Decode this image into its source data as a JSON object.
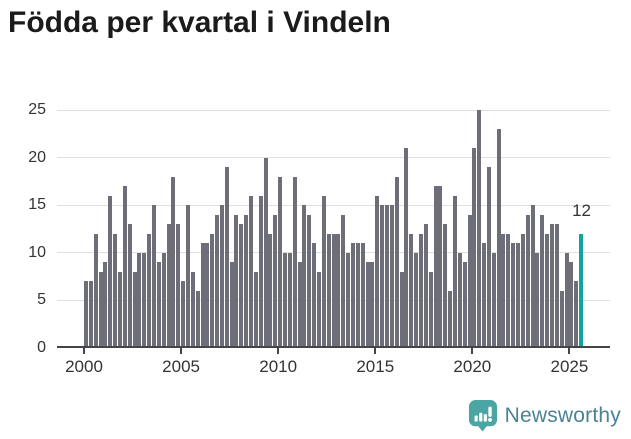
{
  "title": "Födda per kvartal i Vindeln",
  "colors": {
    "bar": "#6e6e78",
    "highlight": "#12a3a0",
    "grid": "#e0e0e0",
    "axis": "#454545",
    "label_text": "#333333",
    "title_text": "#1b1b1b",
    "logo_icon": "#4aa5a3",
    "logo_text": "#4b8294"
  },
  "chart_data": {
    "type": "bar",
    "title": "Födda per kvartal i Vindeln",
    "x_unit": "quarter",
    "x_start": "2000 Q1",
    "x_end": "2025 Q3",
    "ylim": [
      0,
      25
    ],
    "y_ticks": [
      0,
      5,
      10,
      15,
      20,
      25
    ],
    "x_tick_labels": [
      "2000",
      "2005",
      "2010",
      "2015",
      "2020",
      "2025"
    ],
    "grid": "horizontal",
    "legend": "none",
    "series": [
      {
        "name": "Födda per kvartal",
        "values": [
          7,
          7,
          12,
          8,
          9,
          16,
          12,
          8,
          17,
          13,
          8,
          10,
          10,
          12,
          15,
          9,
          10,
          13,
          18,
          13,
          7,
          15,
          8,
          6,
          11,
          11,
          12,
          14,
          15,
          19,
          9,
          14,
          13,
          14,
          16,
          8,
          16,
          20,
          12,
          14,
          18,
          10,
          10,
          18,
          9,
          15,
          14,
          11,
          8,
          16,
          12,
          12,
          12,
          14,
          10,
          11,
          11,
          11,
          9,
          9,
          16,
          15,
          15,
          15,
          18,
          8,
          21,
          12,
          10,
          12,
          13,
          8,
          17,
          17,
          13,
          6,
          16,
          10,
          9,
          14,
          21,
          25,
          11,
          19,
          10,
          23,
          12,
          12,
          11,
          11,
          12,
          14,
          15,
          10,
          14,
          12,
          13,
          13,
          6,
          10,
          9,
          7,
          12
        ]
      }
    ],
    "highlight": {
      "index": 102,
      "quarter": "2025 Q3",
      "value": 12,
      "label": "12"
    }
  },
  "annotation": {
    "last_value_label": "12"
  },
  "footer": {
    "brand": "Newsworthy"
  }
}
